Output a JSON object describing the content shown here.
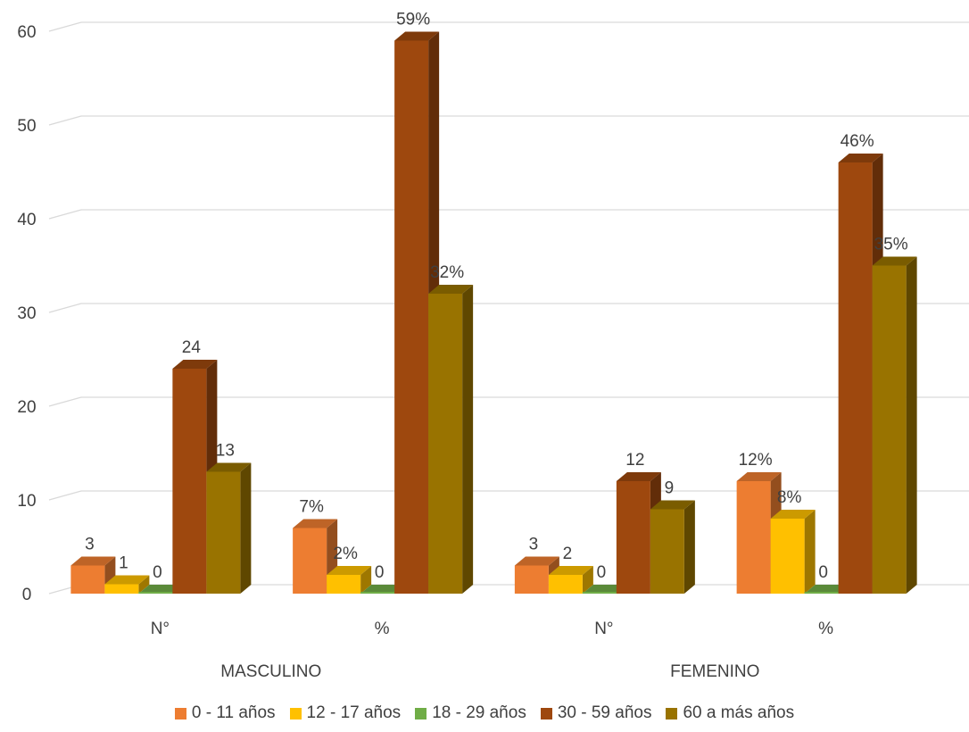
{
  "chart_data": {
    "type": "bar",
    "style": "3d-clustered-column",
    "ylim": [
      0,
      60
    ],
    "yticks": [
      0,
      10,
      20,
      30,
      40,
      50,
      60
    ],
    "grid": true,
    "legend_position": "bottom",
    "groups": [
      {
        "label": "MASCULINO",
        "categories": [
          "N°",
          "%"
        ]
      },
      {
        "label": "FEMENINO",
        "categories": [
          "N°",
          "%"
        ]
      }
    ],
    "categories": [
      "N°",
      "%",
      "N°",
      "%"
    ],
    "series": [
      {
        "name": "0 - 11 años",
        "color": "#ED7D31",
        "values": [
          3,
          7,
          3,
          12
        ],
        "labels": [
          "3",
          "7%",
          "3",
          "12%"
        ]
      },
      {
        "name": "12 - 17 años",
        "color": "#FFC000",
        "values": [
          1,
          2,
          2,
          8
        ],
        "labels": [
          "1",
          "2%",
          "2",
          "8%"
        ]
      },
      {
        "name": "18 - 29 años",
        "color": "#70AD47",
        "values": [
          0,
          0,
          0,
          0
        ],
        "labels": [
          "0",
          "0",
          "0",
          "0"
        ]
      },
      {
        "name": "30 - 59 años",
        "color": "#9E480E",
        "values": [
          24,
          59,
          12,
          46
        ],
        "labels": [
          "24",
          "59%",
          "12",
          "46%"
        ]
      },
      {
        "name": "60 a más años",
        "color": "#997300",
        "values": [
          13,
          32,
          9,
          35
        ],
        "labels": [
          "13",
          "32%",
          "9",
          "35%"
        ]
      }
    ]
  }
}
